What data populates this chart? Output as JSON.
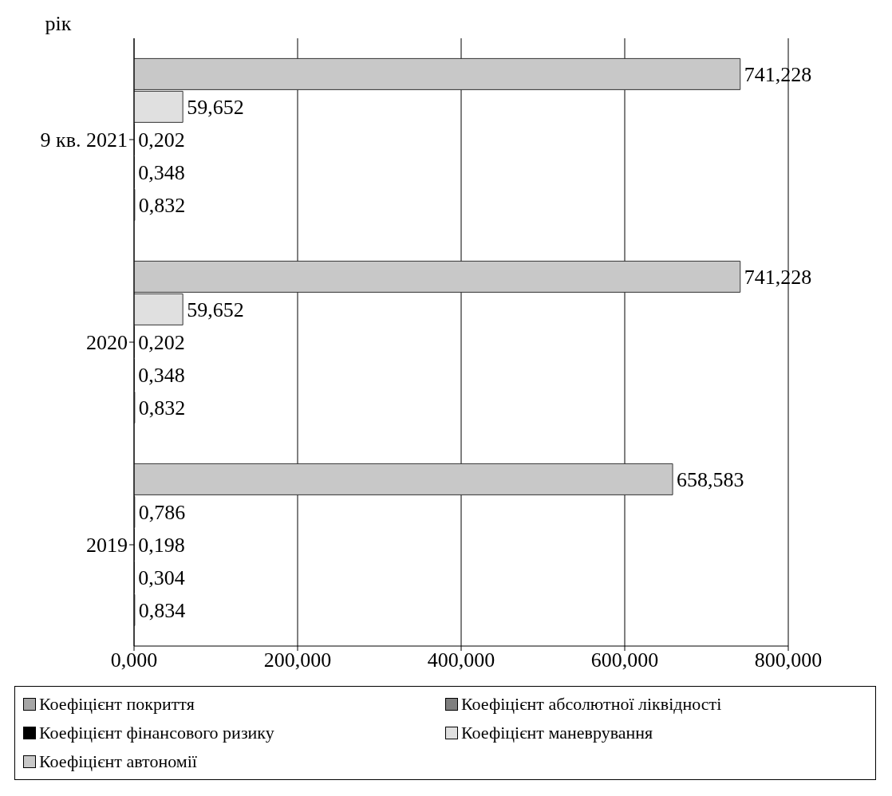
{
  "chart_data": {
    "type": "bar",
    "orientation": "horizontal",
    "ylabel": "рік",
    "categories": [
      "9 кв. 2021",
      "2020",
      "2019"
    ],
    "series": [
      {
        "name": "Коефіцієнт покриття",
        "color": "#a6a6a6",
        "values": [
          0.832,
          0.832,
          0.834
        ],
        "value_labels": [
          "0,832",
          "0,832",
          "0,834"
        ]
      },
      {
        "name": "Коефіцієнт абсолютної ліквідності",
        "color": "#7f7f7f",
        "values": [
          0.348,
          0.348,
          0.304
        ],
        "value_labels": [
          "0,348",
          "0,348",
          "0,304"
        ]
      },
      {
        "name": "Коефіцієнт фінансового ризику",
        "color": "#000000",
        "values": [
          0.202,
          0.202,
          0.198
        ],
        "value_labels": [
          "0,202",
          "0,202",
          "0,198"
        ]
      },
      {
        "name": "Коефіцієнт маневрування",
        "color": "#e0e0e0",
        "values": [
          59.652,
          59.652,
          0.786
        ],
        "value_labels": [
          "59,652",
          "59,652",
          "0,786"
        ]
      },
      {
        "name": "Коефіцієнт автономії",
        "color": "#c8c8c8",
        "values": [
          741.228,
          741.228,
          658.583
        ],
        "value_labels": [
          "741,228",
          "741,228",
          "658,583"
        ]
      }
    ],
    "xlim": [
      0,
      800
    ],
    "xticks": [
      {
        "value": 0,
        "label": "0,000"
      },
      {
        "value": 200,
        "label": "200,000"
      },
      {
        "value": 400,
        "label": "400,000"
      },
      {
        "value": 600,
        "label": "600,000"
      },
      {
        "value": 800,
        "label": "800,000"
      }
    ],
    "grid": "x",
    "legend": "bottom"
  }
}
